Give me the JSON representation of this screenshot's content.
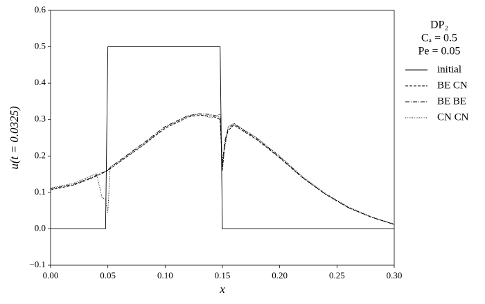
{
  "chart_data": {
    "type": "line",
    "xlabel": "x",
    "ylabel": "u(t = 0.0325)",
    "legend_title": [
      "DP₂",
      "Cₐ = 0.5",
      "Pe = 0.05"
    ],
    "legend": "outside-right",
    "xlim": [
      0,
      0.3
    ],
    "ylim": [
      -0.1,
      0.6
    ],
    "xticks": [
      {
        "value": 0,
        "label": "0.00"
      },
      {
        "value": 0.05,
        "label": "0.05"
      },
      {
        "value": 0.1,
        "label": "0.10"
      },
      {
        "value": 0.15,
        "label": "0.15"
      },
      {
        "value": 0.2,
        "label": "0.20"
      },
      {
        "value": 0.25,
        "label": "0.25"
      },
      {
        "value": 0.3,
        "label": "0.30"
      }
    ],
    "yticks": [
      {
        "value": -0.1,
        "label": "−0.1"
      },
      {
        "value": 0,
        "label": "0.0"
      },
      0.1,
      0.2,
      0.3,
      0.4,
      0.5,
      0.6
    ],
    "series": [
      {
        "name": "initial",
        "color": "#000000",
        "dash": "none",
        "x": [
          0,
          0.048,
          0.05,
          0.148,
          0.15,
          0.3
        ],
        "values": [
          0,
          0,
          0.5,
          0.5,
          0,
          0
        ]
      },
      {
        "name": "BE CN",
        "color": "#000000",
        "dash": "4 2",
        "x": [
          0,
          0.02,
          0.035,
          0.04,
          0.045,
          0.048,
          0.05,
          0.052,
          0.06,
          0.08,
          0.1,
          0.12,
          0.13,
          0.14,
          0.145,
          0.148,
          0.15,
          0.152,
          0.155,
          0.16,
          0.18,
          0.2,
          0.22,
          0.24,
          0.26,
          0.28,
          0.3
        ],
        "values": [
          0.107,
          0.12,
          0.138,
          0.145,
          0.152,
          0.157,
          0.16,
          0.165,
          0.183,
          0.228,
          0.276,
          0.307,
          0.312,
          0.31,
          0.305,
          0.3,
          0.16,
          0.23,
          0.27,
          0.285,
          0.245,
          0.195,
          0.14,
          0.095,
          0.058,
          0.032,
          0.012
        ]
      },
      {
        "name": "BE BE",
        "color": "#000000",
        "dash": "6 2 1 2",
        "x": [
          0,
          0.02,
          0.035,
          0.04,
          0.045,
          0.048,
          0.05,
          0.052,
          0.06,
          0.08,
          0.1,
          0.12,
          0.13,
          0.14,
          0.145,
          0.148,
          0.15,
          0.152,
          0.155,
          0.16,
          0.18,
          0.2,
          0.22,
          0.24,
          0.26,
          0.28,
          0.3
        ],
        "values": [
          0.11,
          0.122,
          0.14,
          0.147,
          0.154,
          0.158,
          0.162,
          0.168,
          0.187,
          0.233,
          0.281,
          0.311,
          0.316,
          0.314,
          0.31,
          0.305,
          0.18,
          0.24,
          0.275,
          0.288,
          0.248,
          0.197,
          0.141,
          0.095,
          0.058,
          0.032,
          0.012
        ]
      },
      {
        "name": "CN CN",
        "color": "#000000",
        "dash": "1 1.5",
        "x": [
          0,
          0.02,
          0.035,
          0.04,
          0.045,
          0.048,
          0.05,
          0.052,
          0.06,
          0.08,
          0.1,
          0.12,
          0.13,
          0.14,
          0.145,
          0.148,
          0.15,
          0.152,
          0.155,
          0.16,
          0.18,
          0.2,
          0.22,
          0.24,
          0.26,
          0.28,
          0.3
        ],
        "values": [
          0.112,
          0.125,
          0.145,
          0.152,
          0.085,
          0.082,
          0.045,
          0.17,
          0.185,
          0.23,
          0.279,
          0.31,
          0.315,
          0.305,
          0.31,
          0.315,
          0.17,
          0.22,
          0.28,
          0.29,
          0.25,
          0.2,
          0.143,
          0.097,
          0.06,
          0.033,
          0.013
        ]
      }
    ]
  }
}
